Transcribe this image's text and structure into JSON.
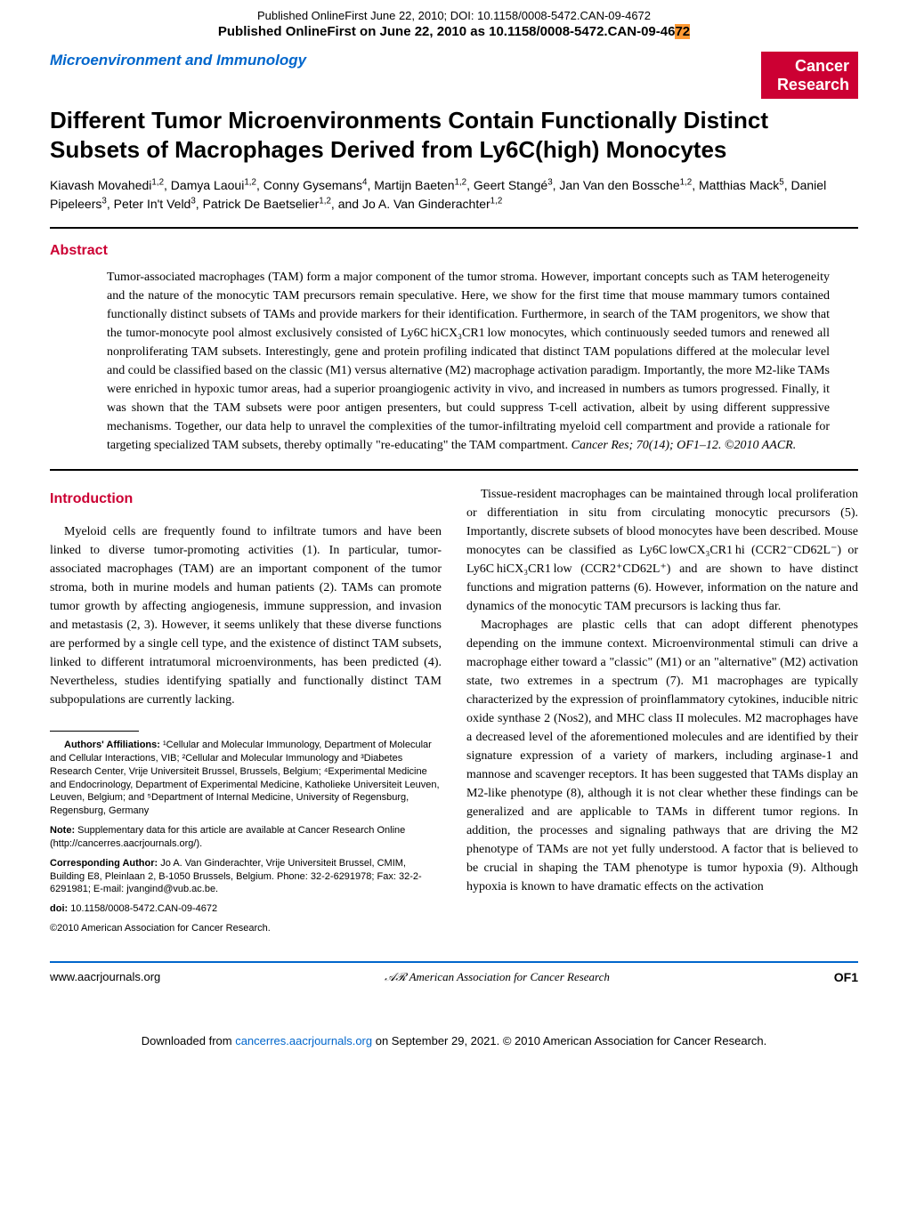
{
  "banner": {
    "line1": "Published OnlineFirst June 22, 2010; DOI: 10.1158/0008-5472.CAN-09-4672",
    "line2_pre": "Published OnlineFirst on June 22, 2010 as 10.1158/0008-5472.CAN-09-46",
    "line2_hl": "72"
  },
  "header": {
    "section_label": "Microenvironment and Immunology",
    "journal_line1": "Cancer",
    "journal_line2": "Research"
  },
  "title": "Different Tumor Microenvironments Contain Functionally Distinct Subsets of Macrophages Derived from Ly6C(high) Monocytes",
  "authors_html": "Kiavash Movahedi<sup>1,2</sup>, Damya Laoui<sup>1,2</sup>, Conny Gysemans<sup>4</sup>, Martijn Baeten<sup>1,2</sup>, Geert Stangé<sup>3</sup>, Jan Van den Bossche<sup>1,2</sup>, Matthias Mack<sup>5</sup>, Daniel Pipeleers<sup>3</sup>, Peter In't Veld<sup>3</sup>, Patrick De Baetselier<sup>1,2</sup>, and Jo A. Van Ginderachter<sup>1,2</sup>",
  "abstract": {
    "label": "Abstract",
    "body": "Tumor-associated macrophages (TAM) form a major component of the tumor stroma. However, important concepts such as TAM heterogeneity and the nature of the monocytic TAM precursors remain speculative. Here, we show for the first time that mouse mammary tumors contained functionally distinct subsets of TAMs and provide markers for their identification. Furthermore, in search of the TAM progenitors, we show that the tumor-monocyte pool almost exclusively consisted of Ly6C hiCX₃CR1 low monocytes, which continuously seeded tumors and renewed all nonproliferating TAM subsets. Interestingly, gene and protein profiling indicated that distinct TAM populations differed at the molecular level and could be classified based on the classic (M1) versus alternative (M2) macrophage activation paradigm. Importantly, the more M2-like TAMs were enriched in hypoxic tumor areas, had a superior proangiogenic activity in vivo, and increased in numbers as tumors progressed. Finally, it was shown that the TAM subsets were poor antigen presenters, but could suppress T-cell activation, albeit by using different suppressive mechanisms. Together, our data help to unravel the complexities of the tumor-infiltrating myeloid cell compartment and provide a rationale for targeting specialized TAM subsets, thereby optimally \"re-educating\" the TAM compartment.",
    "citation": "Cancer Res; 70(14); OF1–12. ©2010 AACR."
  },
  "introduction": {
    "label": "Introduction",
    "left_p1": "Myeloid cells are frequently found to infiltrate tumors and have been linked to diverse tumor-promoting activities (1). In particular, tumor-associated macrophages (TAM) are an important component of the tumor stroma, both in murine models and human patients (2). TAMs can promote tumor growth by affecting angiogenesis, immune suppression, and invasion and metastasis (2, 3). However, it seems unlikely that these diverse functions are performed by a single cell type, and the existence of distinct TAM subsets, linked to different intratumoral microenvironments, has been predicted (4). Nevertheless, studies identifying spatially and functionally distinct TAM subpopulations are currently lacking.",
    "right_p1": "Tissue-resident macrophages can be maintained through local proliferation or differentiation in situ from circulating monocytic precursors (5). Importantly, discrete subsets of blood monocytes have been described. Mouse monocytes can be classified as Ly6C lowCX₃CR1 hi (CCR2⁻CD62L⁻) or Ly6C hiCX₃CR1 low (CCR2⁺CD62L⁺) and are shown to have distinct functions and migration patterns (6). However, information on the nature and dynamics of the monocytic TAM precursors is lacking thus far.",
    "right_p2": "Macrophages are plastic cells that can adopt different phenotypes depending on the immune context. Microenvironmental stimuli can drive a macrophage either toward a \"classic\" (M1) or an \"alternative\" (M2) activation state, two extremes in a spectrum (7). M1 macrophages are typically characterized by the expression of proinflammatory cytokines, inducible nitric oxide synthase 2 (Nos2), and MHC class II molecules. M2 macrophages have a decreased level of the aforementioned molecules and are identified by their signature expression of a variety of markers, including arginase-1 and mannose and scavenger receptors. It has been suggested that TAMs display an M2-like phenotype (8), although it is not clear whether these findings can be generalized and are applicable to TAMs in different tumor regions. In addition, the processes and signaling pathways that are driving the M2 phenotype of TAMs are not yet fully understood. A factor that is believed to be crucial in shaping the TAM phenotype is tumor hypoxia (9). Although hypoxia is known to have dramatic effects on the activation"
  },
  "footnotes": {
    "affiliations_label": "Authors' Affiliations:",
    "affiliations": " ¹Cellular and Molecular Immunology, Department of Molecular and Cellular Interactions, VIB; ²Cellular and Molecular Immunology and ³Diabetes Research Center, Vrije Universiteit Brussel, Brussels, Belgium; ⁴Experimental Medicine and Endocrinology, Department of Experimental Medicine, Katholieke Universiteit Leuven, Leuven, Belgium; and ⁵Department of Internal Medicine, University of Regensburg, Regensburg, Germany",
    "note_label": "Note:",
    "note": " Supplementary data for this article are available at Cancer Research Online (http://cancerres.aacrjournals.org/).",
    "corr_label": "Corresponding Author:",
    "corr": " Jo A. Van Ginderachter, Vrije Universiteit Brussel, CMIM, Building E8, Pleinlaan 2, B-1050 Brussels, Belgium. Phone: 32-2-6291978; Fax: 32-2-6291981; E-mail: jvangind@vub.ac.be.",
    "doi_label": "doi:",
    "doi": " 10.1158/0008-5472.CAN-09-4672",
    "copyright": "©2010 American Association for Cancer Research."
  },
  "footer": {
    "left": "www.aacrjournals.org",
    "center": "American Association for Cancer Research",
    "right": "OF1"
  },
  "bottom": {
    "line_pre": "Downloaded from ",
    "link": "cancerres.aacrjournals.org",
    "line_post": " on September 29, 2021. © 2010 American Association for Cancer Research."
  },
  "colors": {
    "blue": "#0066cc",
    "red": "#cc0033",
    "orange": "#ff9933"
  }
}
